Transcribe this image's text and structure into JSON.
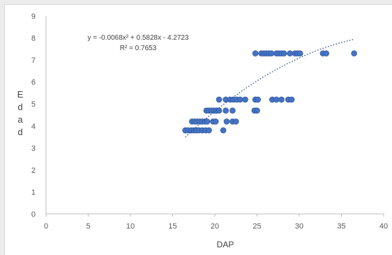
{
  "chart_data": {
    "type": "scatter",
    "xlabel": "DAP",
    "ylabel": "Edad",
    "xlim": [
      0,
      40
    ],
    "ylim": [
      0,
      9
    ],
    "x_ticks": [
      "0",
      "5",
      "10",
      "15",
      "20",
      "25",
      "30",
      "35",
      "40"
    ],
    "y_ticks": [
      "0",
      "1",
      "2",
      "3",
      "4",
      "5",
      "6",
      "7",
      "8",
      "9"
    ],
    "grid": false,
    "legend": "none",
    "marker_color": "#4472c4",
    "trendline": {
      "type": "polynomial",
      "order": 2,
      "coefficients": [
        -0.0068,
        0.5828,
        -4.2723
      ],
      "x_range": [
        16.5,
        36.5
      ],
      "equation_label": "y = -0.0068x² + 0.5828x - 4.2723",
      "r2_label": "R² = 0.7653",
      "style": "dotted"
    },
    "points": [
      {
        "x": 16.5,
        "y": 3.8
      },
      {
        "x": 16.8,
        "y": 3.8
      },
      {
        "x": 17.2,
        "y": 3.8
      },
      {
        "x": 17.5,
        "y": 3.8
      },
      {
        "x": 17.8,
        "y": 3.8
      },
      {
        "x": 18.1,
        "y": 3.8
      },
      {
        "x": 18.5,
        "y": 3.8
      },
      {
        "x": 18.9,
        "y": 3.8
      },
      {
        "x": 19.3,
        "y": 3.8
      },
      {
        "x": 21.0,
        "y": 3.8
      },
      {
        "x": 17.3,
        "y": 4.2
      },
      {
        "x": 17.6,
        "y": 4.2
      },
      {
        "x": 17.9,
        "y": 4.2
      },
      {
        "x": 18.2,
        "y": 4.2
      },
      {
        "x": 18.5,
        "y": 4.2
      },
      {
        "x": 18.8,
        "y": 4.2
      },
      {
        "x": 19.1,
        "y": 4.2
      },
      {
        "x": 19.8,
        "y": 4.2
      },
      {
        "x": 20.1,
        "y": 4.2
      },
      {
        "x": 21.4,
        "y": 4.2
      },
      {
        "x": 22.1,
        "y": 4.2
      },
      {
        "x": 22.5,
        "y": 4.2
      },
      {
        "x": 19.0,
        "y": 4.7
      },
      {
        "x": 19.3,
        "y": 4.7
      },
      {
        "x": 19.6,
        "y": 4.7
      },
      {
        "x": 19.9,
        "y": 4.7
      },
      {
        "x": 20.2,
        "y": 4.7
      },
      {
        "x": 20.5,
        "y": 4.7
      },
      {
        "x": 21.3,
        "y": 4.7
      },
      {
        "x": 22.1,
        "y": 4.7
      },
      {
        "x": 24.7,
        "y": 4.7
      },
      {
        "x": 25.0,
        "y": 4.7
      },
      {
        "x": 20.5,
        "y": 5.2
      },
      {
        "x": 21.3,
        "y": 5.2
      },
      {
        "x": 21.8,
        "y": 5.2
      },
      {
        "x": 22.2,
        "y": 5.2
      },
      {
        "x": 22.6,
        "y": 5.2
      },
      {
        "x": 23.0,
        "y": 5.2
      },
      {
        "x": 23.6,
        "y": 5.2
      },
      {
        "x": 24.8,
        "y": 5.2
      },
      {
        "x": 25.1,
        "y": 5.2
      },
      {
        "x": 26.8,
        "y": 5.2
      },
      {
        "x": 27.3,
        "y": 5.2
      },
      {
        "x": 27.9,
        "y": 5.2
      },
      {
        "x": 28.7,
        "y": 5.2
      },
      {
        "x": 29.1,
        "y": 5.2
      },
      {
        "x": 24.8,
        "y": 7.3
      },
      {
        "x": 25.5,
        "y": 7.3
      },
      {
        "x": 25.8,
        "y": 7.3
      },
      {
        "x": 26.1,
        "y": 7.3
      },
      {
        "x": 26.4,
        "y": 7.3
      },
      {
        "x": 26.7,
        "y": 7.3
      },
      {
        "x": 27.3,
        "y": 7.3
      },
      {
        "x": 27.6,
        "y": 7.3
      },
      {
        "x": 27.9,
        "y": 7.3
      },
      {
        "x": 28.2,
        "y": 7.3
      },
      {
        "x": 28.9,
        "y": 7.3
      },
      {
        "x": 29.5,
        "y": 7.3
      },
      {
        "x": 29.8,
        "y": 7.3
      },
      {
        "x": 30.1,
        "y": 7.3
      },
      {
        "x": 32.8,
        "y": 7.3
      },
      {
        "x": 33.2,
        "y": 7.3
      },
      {
        "x": 36.5,
        "y": 7.3
      }
    ]
  }
}
